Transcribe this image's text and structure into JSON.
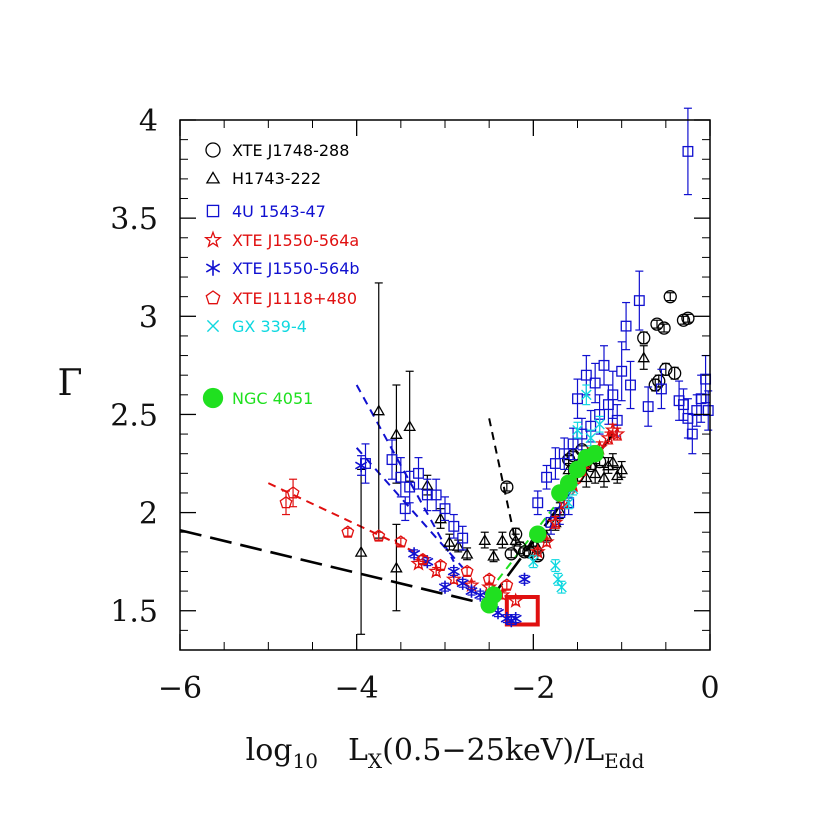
{
  "chart_data": {
    "type": "scatter",
    "title": "",
    "xlabel": {
      "main": "log",
      "sub1": "10",
      "mid": "L",
      "sub2": "X",
      "tail": "(0.5−25keV)/L",
      "sub3": "Edd"
    },
    "ylabel": "Γ",
    "xlim": [
      -6,
      0
    ],
    "ylim": [
      1.3,
      4.0
    ],
    "xticks": [
      -6,
      -4,
      -2,
      0
    ],
    "xtick_labels": [
      "−6",
      "−4",
      "−2",
      "0"
    ],
    "yticks": [
      1.5,
      2,
      2.5,
      3,
      3.5,
      4
    ],
    "ytick_labels": [
      "1.5",
      "2",
      "2.5",
      "3",
      "3.5",
      "4"
    ],
    "grid": false,
    "legend_placement": "top-left",
    "series": [
      {
        "name": "XTE J1748-288",
        "marker": "circle",
        "color": "#000000",
        "points": [
          [
            -0.25,
            2.99
          ],
          [
            -0.3,
            2.98
          ],
          [
            -0.45,
            3.1
          ],
          [
            -0.6,
            2.96
          ],
          [
            -0.52,
            2.94
          ],
          [
            -0.75,
            2.89
          ],
          [
            -0.5,
            2.73
          ],
          [
            -0.4,
            2.71
          ],
          [
            -0.58,
            2.67
          ],
          [
            -0.62,
            2.65
          ],
          [
            -2.3,
            2.13
          ],
          [
            -2.2,
            1.89
          ],
          [
            -2.15,
            1.82
          ],
          [
            -2.25,
            1.79
          ],
          [
            -2.1,
            1.8
          ],
          [
            -1.95,
            1.78
          ],
          [
            -2.05,
            1.8
          ],
          [
            -1.55,
            2.29
          ],
          [
            -1.45,
            2.32
          ],
          [
            -1.6,
            2.27
          ],
          [
            -1.35,
            2.24
          ],
          [
            -1.25,
            2.26
          ]
        ],
        "err": [
          0.02,
          0.02,
          0.02,
          0.02,
          0.02,
          0.03,
          0.03,
          0.03,
          0.03,
          0.03,
          0.02,
          0.03,
          0.03,
          0.02,
          0.02,
          0.02,
          0.02,
          0.02,
          0.02,
          0.02,
          0.02,
          0.02
        ]
      },
      {
        "name": "H1743-222",
        "marker": "triangle",
        "color": "#000000",
        "points": [
          [
            -3.95,
            1.8
          ],
          [
            -3.75,
            2.52
          ],
          [
            -3.55,
            2.4
          ],
          [
            -3.4,
            2.44
          ],
          [
            -3.55,
            1.72
          ],
          [
            -3.2,
            2.14
          ],
          [
            -3.05,
            1.97
          ],
          [
            -2.95,
            1.85
          ],
          [
            -2.85,
            1.83
          ],
          [
            -2.75,
            1.79
          ],
          [
            -2.55,
            1.86
          ],
          [
            -2.45,
            1.78
          ],
          [
            -2.35,
            1.86
          ],
          [
            -2.2,
            1.86
          ],
          [
            -2.0,
            1.85
          ],
          [
            -1.95,
            1.82
          ],
          [
            -1.85,
            1.88
          ],
          [
            -1.7,
            2.01
          ],
          [
            -1.6,
            2.22
          ],
          [
            -1.4,
            2.18
          ],
          [
            -1.3,
            2.2
          ],
          [
            -1.2,
            2.18
          ],
          [
            -1.15,
            2.24
          ],
          [
            -1.1,
            2.26
          ],
          [
            -1.05,
            2.19
          ],
          [
            -1.0,
            2.22
          ],
          [
            -0.75,
            2.79
          ],
          [
            -1.75,
            1.95
          ],
          [
            -1.5,
            2.21
          ]
        ],
        "err": [
          0.42,
          0.65,
          0.25,
          0.28,
          0.22,
          0.05,
          0.05,
          0.04,
          0.03,
          0.03,
          0.04,
          0.03,
          0.04,
          0.03,
          0.03,
          0.03,
          0.03,
          0.04,
          0.05,
          0.05,
          0.05,
          0.05,
          0.04,
          0.04,
          0.04,
          0.04,
          0.06,
          0.04,
          0.05
        ]
      },
      {
        "name": "4U 1543-47",
        "marker": "square",
        "color": "#1010d0",
        "points": [
          [
            -0.25,
            3.84
          ],
          [
            -0.8,
            3.08
          ],
          [
            -0.95,
            2.95
          ],
          [
            -1.0,
            2.72
          ],
          [
            -0.9,
            2.65
          ],
          [
            -0.7,
            2.54
          ],
          [
            -0.55,
            2.63
          ],
          [
            -0.3,
            2.55
          ],
          [
            -0.25,
            2.48
          ],
          [
            -0.2,
            2.4
          ],
          [
            -0.1,
            2.58
          ],
          [
            -0.05,
            2.68
          ],
          [
            -0.02,
            2.52
          ],
          [
            -0.15,
            2.52
          ],
          [
            -0.35,
            2.57
          ],
          [
            -1.1,
            2.6
          ],
          [
            -1.15,
            2.55
          ],
          [
            -1.25,
            2.5
          ],
          [
            -1.35,
            2.44
          ],
          [
            -1.45,
            2.4
          ],
          [
            -1.55,
            2.35
          ],
          [
            -1.65,
            2.3
          ],
          [
            -1.75,
            2.25
          ],
          [
            -1.85,
            2.18
          ],
          [
            -1.95,
            2.05
          ],
          [
            -1.05,
            2.47
          ],
          [
            -1.2,
            2.75
          ],
          [
            -1.3,
            2.66
          ],
          [
            -1.4,
            2.7
          ],
          [
            -1.5,
            2.58
          ],
          [
            -3.9,
            2.25
          ],
          [
            -3.6,
            2.27
          ],
          [
            -3.5,
            2.18
          ],
          [
            -3.4,
            2.13
          ],
          [
            -3.3,
            2.2
          ],
          [
            -3.2,
            2.09
          ],
          [
            -3.1,
            2.09
          ],
          [
            -3.0,
            2.02
          ],
          [
            -2.9,
            1.93
          ],
          [
            -2.8,
            1.87
          ],
          [
            -3.45,
            2.02
          ],
          [
            -1.6,
            2.05
          ],
          [
            -1.7,
            2.0
          ],
          [
            -1.8,
            1.95
          ]
        ],
        "err": [
          0.22,
          0.15,
          0.12,
          0.15,
          0.12,
          0.1,
          0.1,
          0.08,
          0.1,
          0.1,
          0.12,
          0.12,
          0.1,
          0.08,
          0.1,
          0.12,
          0.1,
          0.1,
          0.08,
          0.08,
          0.08,
          0.08,
          0.08,
          0.06,
          0.06,
          0.08,
          0.1,
          0.1,
          0.1,
          0.1,
          0.1,
          0.1,
          0.1,
          0.08,
          0.08,
          0.08,
          0.08,
          0.06,
          0.06,
          0.06,
          0.06,
          0.06,
          0.06,
          0.06
        ]
      },
      {
        "name": "XTE J1550-564a",
        "marker": "star5",
        "color": "#e01010",
        "points": [
          [
            -3.3,
            1.74
          ],
          [
            -3.1,
            1.7
          ],
          [
            -2.9,
            1.66
          ],
          [
            -2.7,
            1.63
          ],
          [
            -2.5,
            1.62
          ],
          [
            -2.35,
            1.58
          ],
          [
            -2.2,
            1.55
          ],
          [
            -1.95,
            1.8
          ],
          [
            -1.85,
            1.85
          ],
          [
            -1.75,
            1.95
          ],
          [
            -1.65,
            2.05
          ],
          [
            -1.55,
            2.14
          ],
          [
            -1.45,
            2.22
          ],
          [
            -1.35,
            2.3
          ],
          [
            -1.25,
            2.33
          ],
          [
            -1.15,
            2.38
          ],
          [
            -1.1,
            2.42
          ],
          [
            -1.05,
            2.4
          ]
        ],
        "err": [
          0.02,
          0.02,
          0.02,
          0.02,
          0.02,
          0.02,
          0.02,
          0.02,
          0.02,
          0.03,
          0.03,
          0.03,
          0.03,
          0.03,
          0.03,
          0.03,
          0.03,
          0.03
        ]
      },
      {
        "name": "XTE J1550-564b",
        "marker": "star6",
        "color": "#1010d0",
        "points": [
          [
            -3.95,
            2.24
          ],
          [
            -3.0,
            1.62
          ],
          [
            -2.9,
            1.7
          ],
          [
            -2.8,
            1.64
          ],
          [
            -2.7,
            1.6
          ],
          [
            -2.6,
            1.58
          ],
          [
            -2.5,
            1.57
          ],
          [
            -2.4,
            1.49
          ],
          [
            -2.3,
            1.46
          ],
          [
            -2.25,
            1.45
          ],
          [
            -2.2,
            1.46
          ],
          [
            -2.1,
            1.66
          ],
          [
            -3.2,
            1.75
          ],
          [
            -3.35,
            1.79
          ]
        ],
        "err": [
          0.05,
          0.02,
          0.02,
          0.02,
          0.02,
          0.02,
          0.02,
          0.02,
          0.02,
          0.02,
          0.02,
          0.02,
          0.02,
          0.02
        ]
      },
      {
        "name": "XTE J1118+480",
        "marker": "pentagon",
        "color": "#e01010",
        "points": [
          [
            -4.8,
            2.05
          ],
          [
            -4.72,
            2.1
          ],
          [
            -4.1,
            1.9
          ],
          [
            -3.75,
            1.88
          ],
          [
            -3.5,
            1.85
          ],
          [
            -3.25,
            1.76
          ],
          [
            -3.05,
            1.73
          ],
          [
            -2.75,
            1.7
          ],
          [
            -2.5,
            1.66
          ],
          [
            -2.3,
            1.63
          ]
        ],
        "err": [
          0.06,
          0.07,
          0.02,
          0.02,
          0.02,
          0.02,
          0.02,
          0.02,
          0.02,
          0.02
        ]
      },
      {
        "name": "GX 339-4",
        "marker": "cross",
        "color": "#10d8e0",
        "points": [
          [
            -1.4,
            2.6
          ],
          [
            -1.5,
            2.42
          ],
          [
            -1.35,
            2.38
          ],
          [
            -1.25,
            2.45
          ],
          [
            -1.75,
            1.73
          ],
          [
            -1.72,
            1.66
          ],
          [
            -1.68,
            1.62
          ],
          [
            -2.0,
            1.75
          ],
          [
            -1.6,
            2.05
          ],
          [
            -1.55,
            2.12
          ]
        ],
        "err": [
          0.05,
          0.04,
          0.04,
          0.04,
          0.03,
          0.03,
          0.03,
          0.03,
          0.03,
          0.03
        ]
      },
      {
        "name": "NGC 4051",
        "marker": "filled-circle",
        "color": "#20e020",
        "points": [
          [
            -1.95,
            1.89
          ],
          [
            -1.7,
            2.1
          ],
          [
            -1.6,
            2.15
          ],
          [
            -1.5,
            2.22
          ],
          [
            -1.4,
            2.28
          ],
          [
            -1.3,
            2.3
          ],
          [
            -2.5,
            1.53
          ],
          [
            -2.45,
            1.58
          ]
        ],
        "err": []
      }
    ],
    "fits": [
      {
        "color": "#000000",
        "dash": "long",
        "from": [
          -6.0,
          1.91
        ],
        "to": [
          -2.5,
          1.53
        ]
      },
      {
        "color": "#000000",
        "dash": "long",
        "from": [
          -2.5,
          1.55
        ],
        "to": [
          -1.1,
          2.4
        ]
      },
      {
        "color": "#000000",
        "dash": "short",
        "from": [
          -2.5,
          2.48
        ],
        "to": [
          -2.2,
          1.85
        ]
      },
      {
        "color": "#1010d0",
        "dash": "short",
        "from": [
          -4.0,
          2.65
        ],
        "to": [
          -2.9,
          1.75
        ]
      },
      {
        "color": "#1010d0",
        "dash": "short",
        "from": [
          -4.0,
          2.33
        ],
        "to": [
          -2.8,
          1.72
        ]
      },
      {
        "color": "#e01010",
        "dash": "short",
        "from": [
          -5.0,
          2.15
        ],
        "to": [
          -3.2,
          1.77
        ]
      },
      {
        "color": "#e01010",
        "dash": "short",
        "from": [
          -1.9,
          1.85
        ],
        "to": [
          -1.1,
          2.42
        ]
      },
      {
        "color": "#20e020",
        "dash": "short",
        "from": [
          -2.5,
          1.6
        ],
        "to": [
          -1.3,
          2.3
        ]
      }
    ],
    "highlight_box": {
      "color": "#e01010",
      "x": [
        -2.3,
        -1.95
      ],
      "y": [
        1.43,
        1.57
      ]
    }
  }
}
